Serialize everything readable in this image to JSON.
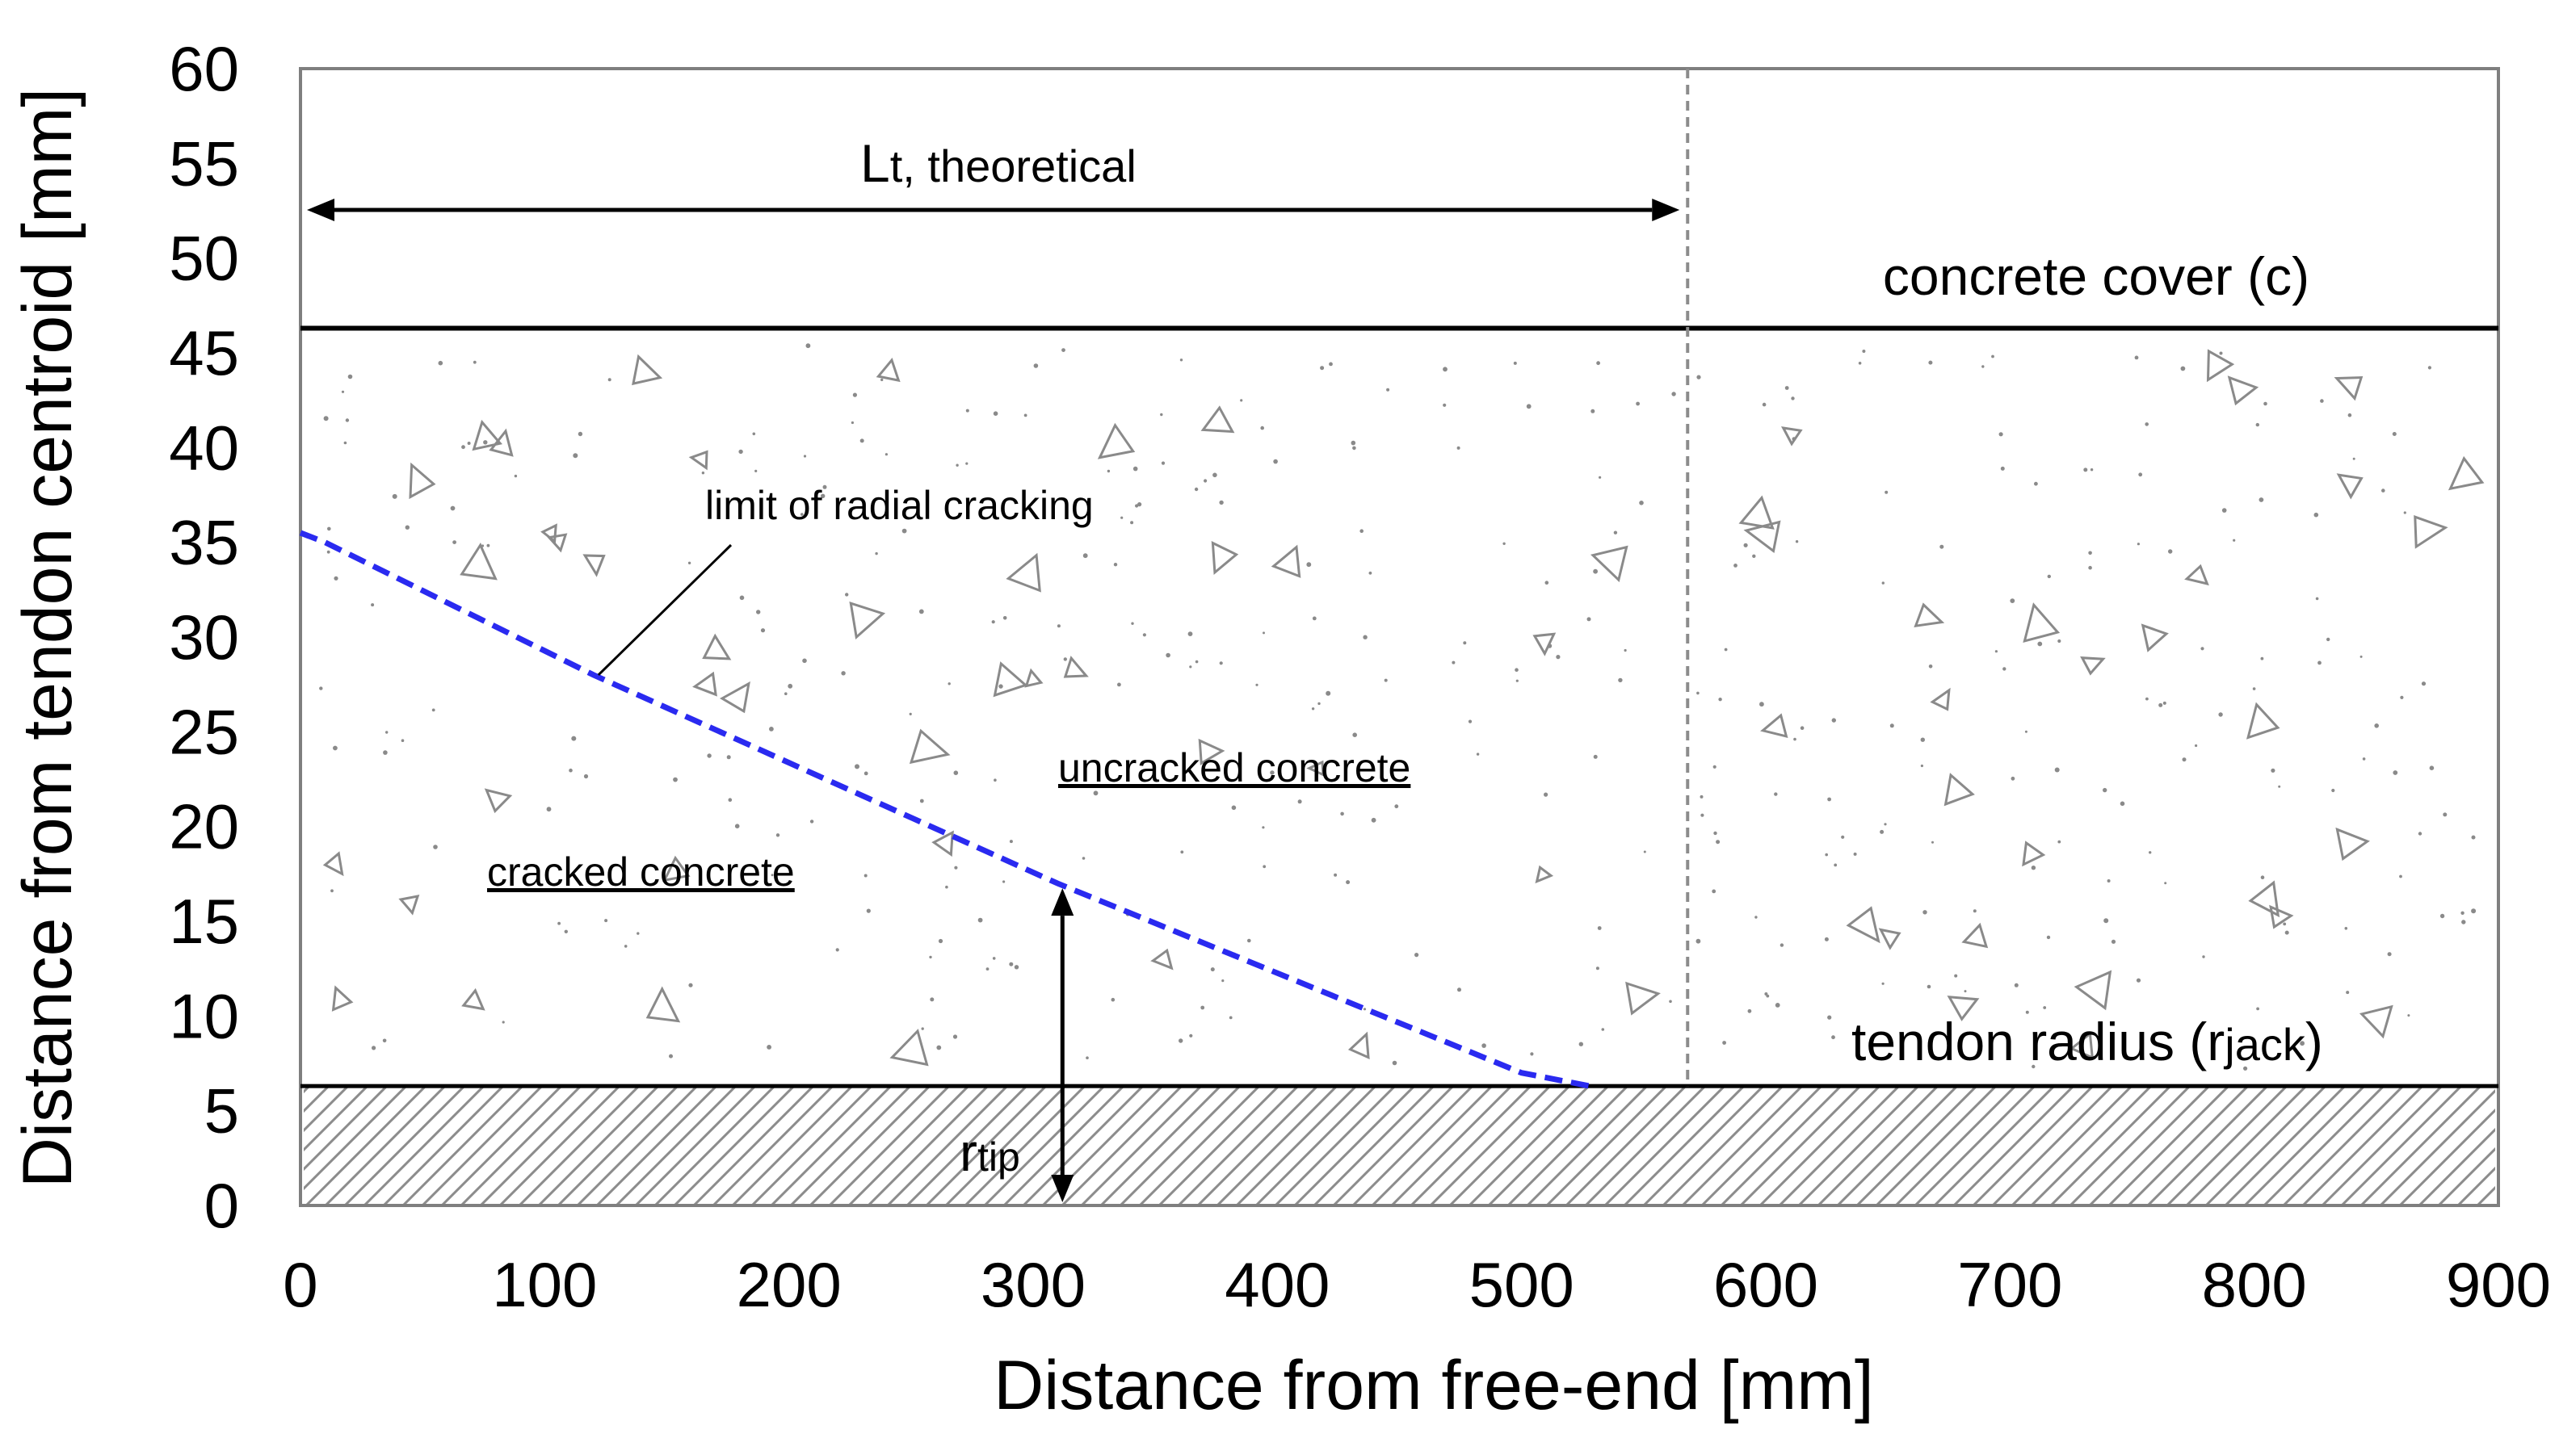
{
  "chart_data": {
    "type": "line",
    "title": "",
    "xlabel": "Distance from free-end [mm]",
    "ylabel": "Distance from tendon centroid [mm]",
    "xlim": [
      0,
      900
    ],
    "ylim": [
      0,
      60
    ],
    "xticks": [
      0,
      100,
      200,
      300,
      400,
      500,
      600,
      700,
      800,
      900
    ],
    "yticks": [
      0,
      5,
      10,
      15,
      20,
      25,
      30,
      35,
      40,
      45,
      50,
      55,
      60
    ],
    "grid": false,
    "series": [
      {
        "name": "limit of radial cracking",
        "style": "dashed",
        "color": "#2a2af0",
        "x": [
          0,
          10,
          120,
          310,
          500,
          528
        ],
        "y": [
          35.5,
          35.0,
          28.0,
          17.0,
          7.0,
          6.3
        ]
      }
    ],
    "reference_lines": {
      "concrete_cover_y": 46.3,
      "tendon_radius_y": 6.3,
      "transfer_length_x": 568
    },
    "annotations": {
      "transfer_length_label_main": "L",
      "transfer_length_label_sub": "t, theoretical",
      "concrete_cover": "concrete cover (c)",
      "tendon_radius_main": "tendon radius (r",
      "tendon_radius_sub": "jack",
      "tendon_radius_close": ")",
      "r_tip_main": "r",
      "r_tip_sub": "tip",
      "limit_label": "limit of radial cracking",
      "cracked_label": "cracked concrete",
      "uncracked_label": "uncracked concrete"
    },
    "colors": {
      "axis": "#000000",
      "frame": "#7f7f7f",
      "crack_line": "#2a2af0",
      "hatch": "#8c8c8c",
      "aggregate": "#8a8a8a",
      "transfer_line": "#8c8c8c"
    }
  }
}
